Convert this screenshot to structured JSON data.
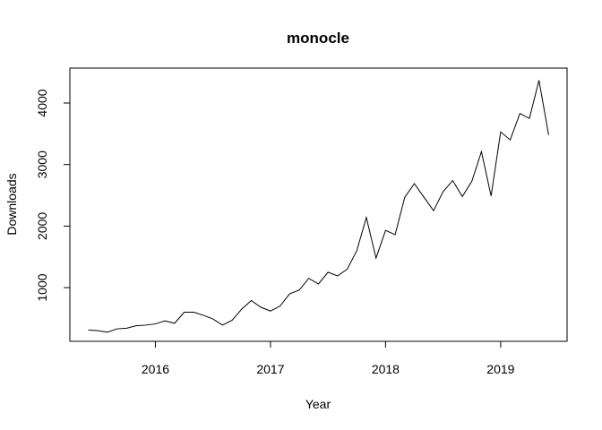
{
  "chart_data": {
    "type": "line",
    "title": "monocle",
    "x_label": "Year",
    "y_label": "Downloads",
    "x": [
      2015.417,
      2015.5,
      2015.583,
      2015.667,
      2015.75,
      2015.833,
      2015.917,
      2016,
      2016.083,
      2016.167,
      2016.25,
      2016.333,
      2016.417,
      2016.5,
      2016.583,
      2016.667,
      2016.75,
      2016.833,
      2016.917,
      2017,
      2017.083,
      2017.167,
      2017.25,
      2017.333,
      2017.417,
      2017.5,
      2017.583,
      2017.667,
      2017.75,
      2017.833,
      2017.917,
      2018,
      2018.083,
      2018.167,
      2018.25,
      2018.333,
      2018.417,
      2018.5,
      2018.583,
      2018.667,
      2018.75,
      2018.833,
      2018.917,
      2019,
      2019.083,
      2019.167,
      2019.25,
      2019.333,
      2019.417
    ],
    "series": [
      {
        "name": "Downloads",
        "color": "#000000",
        "values": [
          310,
          300,
          275,
          330,
          340,
          380,
          390,
          410,
          460,
          420,
          600,
          600,
          550,
          490,
          390,
          470,
          650,
          790,
          680,
          620,
          700,
          900,
          960,
          1150,
          1060,
          1250,
          1190,
          1300,
          1600,
          2140,
          1480,
          1930,
          1860,
          2470,
          2690,
          2470,
          2250,
          2560,
          2740,
          2480,
          2730,
          3210,
          2490,
          3530,
          3400,
          3830,
          3750,
          4370,
          3480
        ]
      }
    ],
    "xlim": [
      2015.257,
      2019.577
    ],
    "xticks": [
      2016,
      2017,
      2018,
      2019
    ],
    "ylim": [
      127,
      4568
    ],
    "yticks": [
      1000,
      2000,
      3000,
      4000
    ],
    "grid": false
  }
}
